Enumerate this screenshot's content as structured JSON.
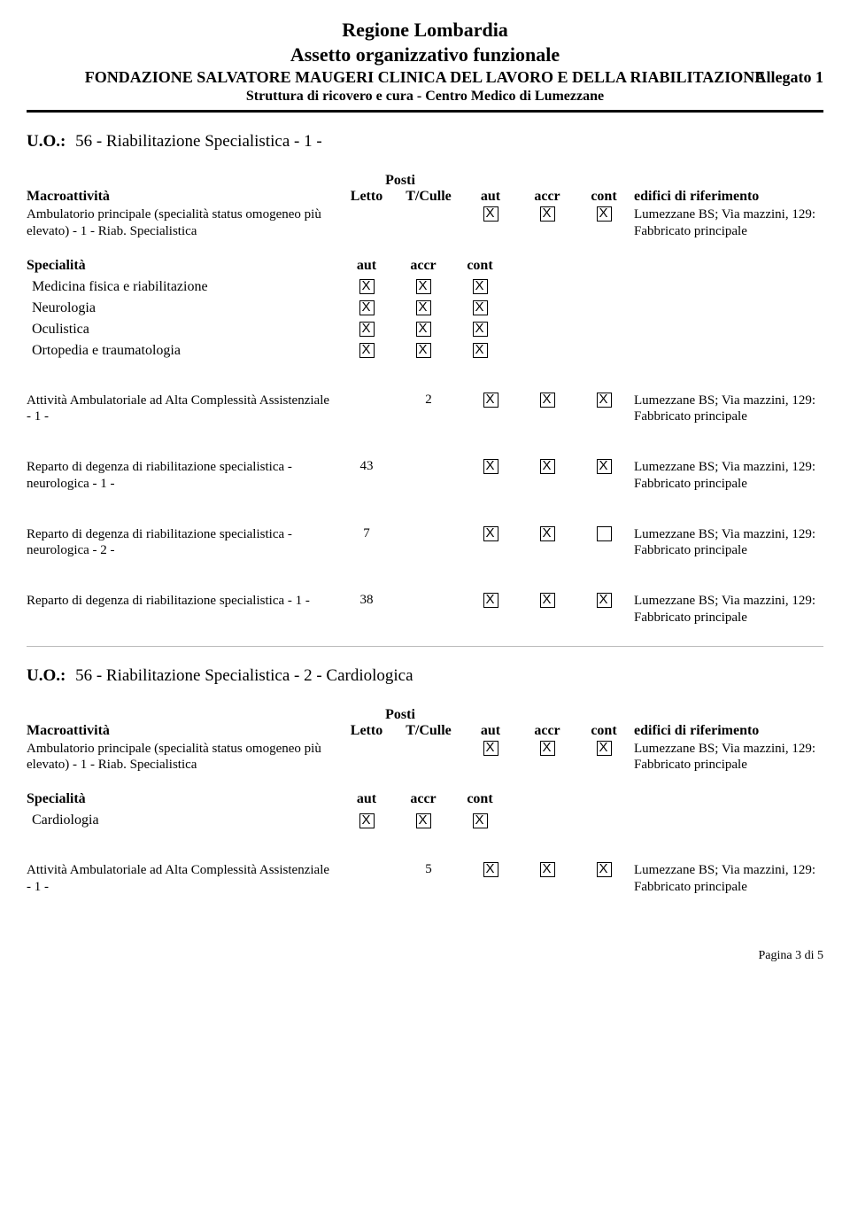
{
  "header": {
    "region": "Regione Lombardia",
    "subtitle": "Assetto organizzativo funzionale",
    "foundation": "FONDAZIONE SALVATORE MAUGERI CLINICA DEL LAVORO E DELLA RIABILITAZIONE",
    "allegato": "Allegato 1",
    "struttura": "Struttura di ricovero e cura - Centro Medico di Lumezzane"
  },
  "labels": {
    "uo": "U.O.:",
    "macro": "Macroattività",
    "posti": "Posti",
    "letto": "Letto",
    "tculle": "T/Culle",
    "aut": "aut",
    "accr": "accr",
    "cont": "cont",
    "edifici": "edifici di riferimento",
    "specialita": "Specialità",
    "page": "Pagina 3 di 5"
  },
  "edificio": "Lumezzane BS; Via mazzini, 129: Fabbricato principale",
  "uo1": {
    "title": "56 - Riabilitazione Specialistica - 1 -",
    "macro": {
      "desc": "Ambulatorio principale (specialità status omogeneo più elevato) - 1 - Riab. Specialistica",
      "letto": "",
      "tculle": "",
      "aut": true,
      "accr": true,
      "cont": true
    },
    "specialita": [
      {
        "name": "Medicina fisica e riabilitazione",
        "aut": true,
        "accr": true,
        "cont": true
      },
      {
        "name": "Neurologia",
        "aut": true,
        "accr": true,
        "cont": true
      },
      {
        "name": "Oculistica",
        "aut": true,
        "accr": true,
        "cont": true
      },
      {
        "name": "Ortopedia e traumatologia",
        "aut": true,
        "accr": true,
        "cont": true
      }
    ],
    "activities": [
      {
        "desc": "Attività Ambulatoriale ad Alta Complessità Assistenziale - 1 -",
        "letto": "",
        "tculle": "2",
        "aut": true,
        "accr": true,
        "cont": true
      },
      {
        "desc": "Reparto di degenza di riabilitazione specialistica - neurologica - 1 -",
        "letto": "43",
        "tculle": "",
        "aut": true,
        "accr": true,
        "cont": true
      },
      {
        "desc": "Reparto di degenza di riabilitazione specialistica - neurologica - 2 -",
        "letto": "7",
        "tculle": "",
        "aut": true,
        "accr": true,
        "cont": false
      },
      {
        "desc": "Reparto di degenza di riabilitazione specialistica - 1 -",
        "letto": "38",
        "tculle": "",
        "aut": true,
        "accr": true,
        "cont": true
      }
    ]
  },
  "uo2": {
    "title": "56 - Riabilitazione Specialistica - 2 - Cardiologica",
    "macro": {
      "desc": "Ambulatorio principale (specialità status omogeneo più elevato) - 1 - Riab. Specialistica",
      "letto": "",
      "tculle": "",
      "aut": true,
      "accr": true,
      "cont": true
    },
    "specialita": [
      {
        "name": "Cardiologia",
        "aut": true,
        "accr": true,
        "cont": true
      }
    ],
    "activities": [
      {
        "desc": "Attività Ambulatoriale ad Alta Complessità Assistenziale - 1 -",
        "letto": "",
        "tculle": "5",
        "aut": true,
        "accr": true,
        "cont": true
      }
    ]
  }
}
